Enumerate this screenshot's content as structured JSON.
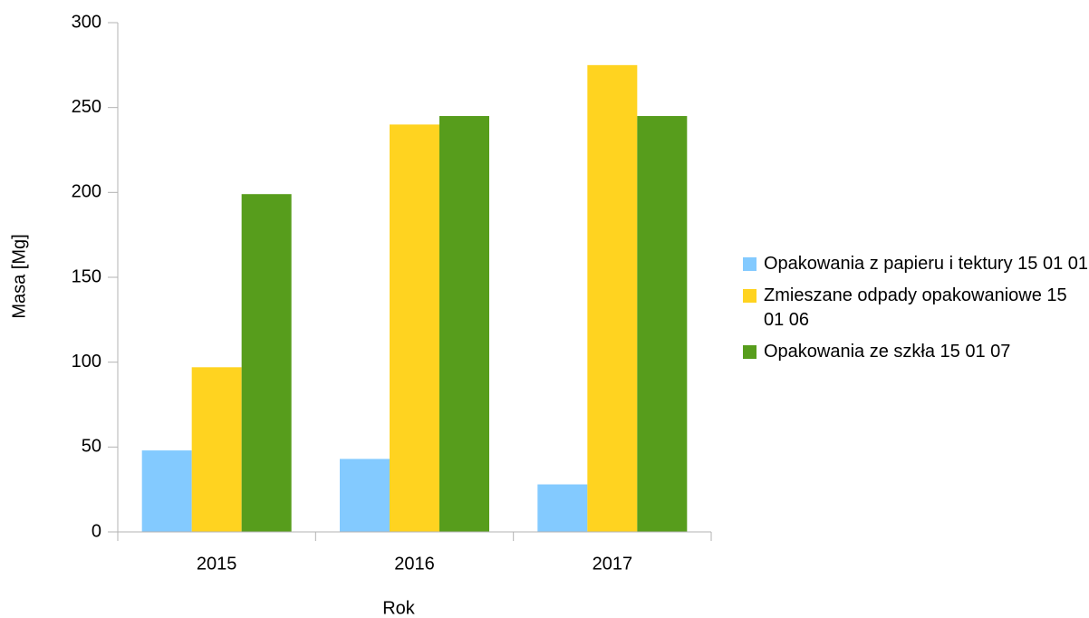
{
  "chart_data": {
    "type": "bar",
    "x_label": "Rok",
    "y_label": "Masa [Mg]",
    "categories": [
      "2015",
      "2016",
      "2017"
    ],
    "series": [
      {
        "name": "Opakowania z papieru i tektury 15 01 01",
        "color": "#83caff",
        "values": [
          48,
          43,
          28
        ]
      },
      {
        "name": "Zmieszane odpady opakowaniowe 15 01 06",
        "color": "#ffd320",
        "values": [
          97,
          240,
          275
        ]
      },
      {
        "name": "Opakowania ze szkła 15 01 07",
        "color": "#579d1c",
        "values": [
          199,
          245,
          245
        ]
      }
    ],
    "ylim": [
      0,
      300
    ],
    "yticks": [
      0,
      50,
      100,
      150,
      200,
      250,
      300
    ],
    "grid": false,
    "legend": "right"
  }
}
